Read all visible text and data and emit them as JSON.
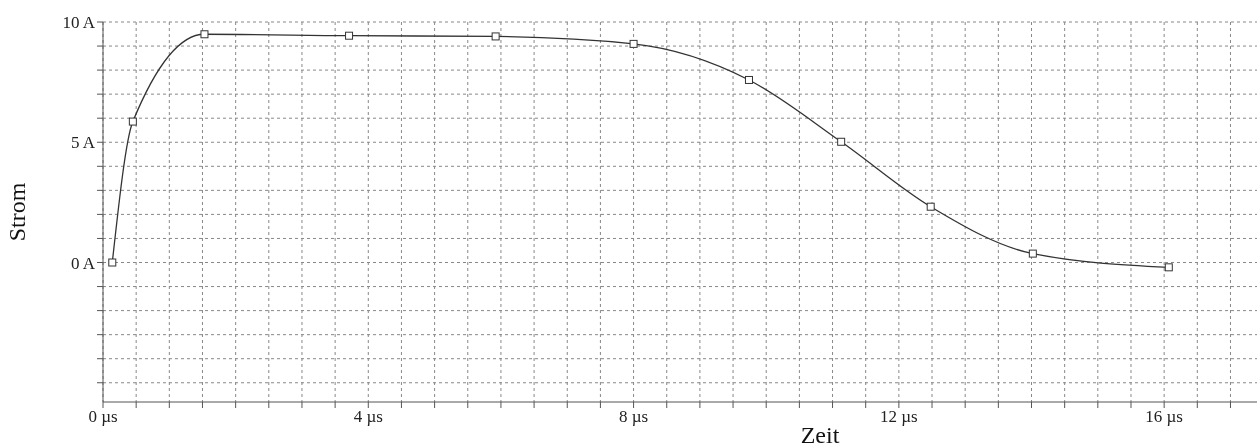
{
  "chart_data": {
    "type": "line",
    "xlabel": "Zeit",
    "ylabel": "Strom",
    "x": [
      0.14,
      0.45,
      1.53,
      3.71,
      5.92,
      8.0,
      9.74,
      11.13,
      12.48,
      14.02,
      16.07
    ],
    "series": [
      {
        "color": "#333333",
        "values": [
          0,
          5.86,
          9.49,
          9.43,
          9.4,
          9.09,
          7.59,
          5.02,
          2.32,
          0.37,
          -0.2
        ]
      }
    ],
    "xlim": [
      0,
      17.4
    ],
    "xticks": [
      {
        "value": 0,
        "label": "0 µs"
      },
      {
        "value": 0.5,
        "label": null
      },
      {
        "value": 1,
        "label": null
      },
      {
        "value": 1.5,
        "label": null
      },
      {
        "value": 2,
        "label": null
      },
      {
        "value": 2.5,
        "label": null
      },
      {
        "value": 3,
        "label": null
      },
      {
        "value": 3.5,
        "label": null
      },
      {
        "value": 4,
        "label": "4 µs"
      },
      {
        "value": 4.5,
        "label": null
      },
      {
        "value": 5,
        "label": null
      },
      {
        "value": 5.5,
        "label": null
      },
      {
        "value": 6,
        "label": null
      },
      {
        "value": 6.5,
        "label": null
      },
      {
        "value": 7,
        "label": null
      },
      {
        "value": 7.5,
        "label": null
      },
      {
        "value": 8,
        "label": "8 µs"
      },
      {
        "value": 8.5,
        "label": null
      },
      {
        "value": 9,
        "label": null
      },
      {
        "value": 9.5,
        "label": null
      },
      {
        "value": 10,
        "label": null
      },
      {
        "value": 10.5,
        "label": null
      },
      {
        "value": 11,
        "label": null
      },
      {
        "value": 11.5,
        "label": null
      },
      {
        "value": 12,
        "label": "12 µs"
      },
      {
        "value": 12.5,
        "label": null
      },
      {
        "value": 13,
        "label": null
      },
      {
        "value": 13.5,
        "label": null
      },
      {
        "value": 14,
        "label": null
      },
      {
        "value": 14.5,
        "label": null
      },
      {
        "value": 15,
        "label": null
      },
      {
        "value": 15.5,
        "label": null
      },
      {
        "value": 16,
        "label": "16 µs"
      },
      {
        "value": 16.5,
        "label": null
      },
      {
        "value": 17,
        "label": null
      }
    ],
    "ylim": [
      -5.8,
      10
    ],
    "yticks": [
      {
        "value": -5,
        "label": null
      },
      {
        "value": -4,
        "label": null
      },
      {
        "value": -3,
        "label": null
      },
      {
        "value": -2,
        "label": null
      },
      {
        "value": -1,
        "label": null
      },
      {
        "value": 0,
        "label": "0 A"
      },
      {
        "value": 1,
        "label": null
      },
      {
        "value": 2,
        "label": null
      },
      {
        "value": 3,
        "label": null
      },
      {
        "value": 4,
        "label": null
      },
      {
        "value": 5,
        "label": "5 A"
      },
      {
        "value": 6,
        "label": null
      },
      {
        "value": 7,
        "label": null
      },
      {
        "value": 8,
        "label": null
      },
      {
        "value": 9,
        "label": null
      },
      {
        "value": 10,
        "label": "10 A"
      }
    ],
    "grid": true,
    "marker": "square",
    "line_style": "solid",
    "legend": false
  }
}
